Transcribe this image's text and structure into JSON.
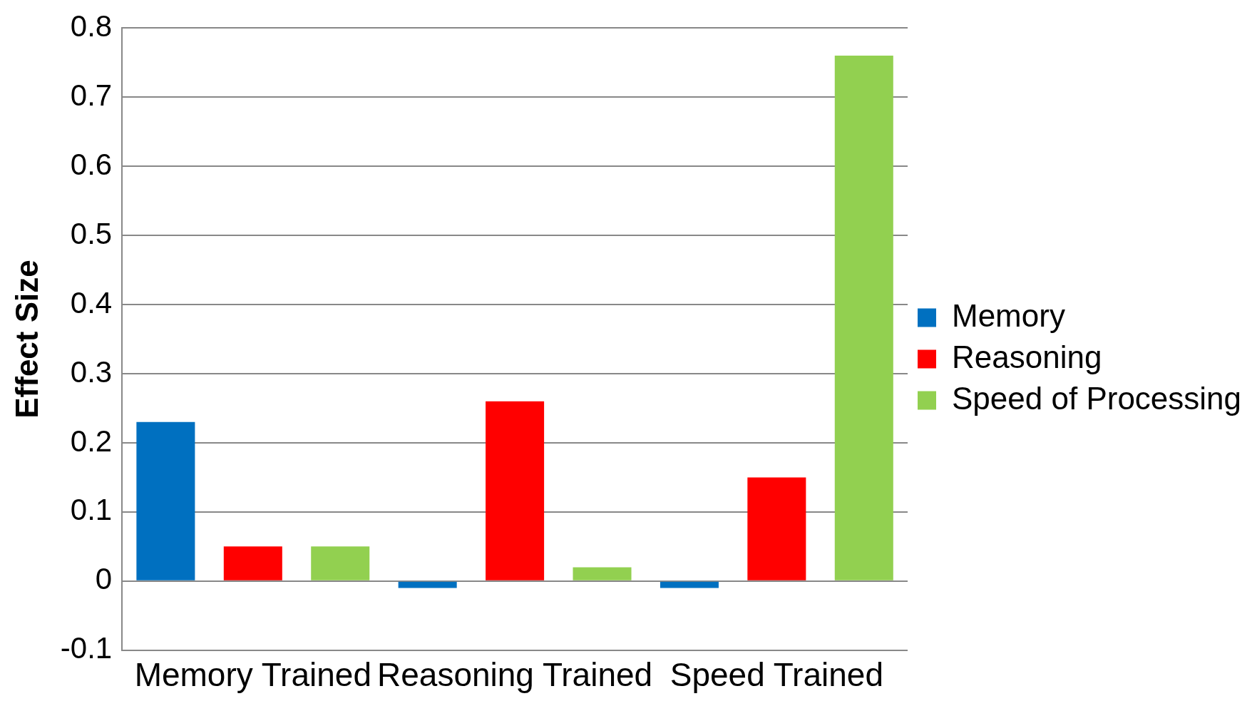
{
  "chart_data": {
    "type": "bar",
    "ylabel": "Effect Size",
    "categories": [
      "Memory Trained",
      "Reasoning Trained",
      "Speed Trained"
    ],
    "series": [
      {
        "name": "Memory",
        "color": "#0070c0",
        "values": [
          0.23,
          -0.01,
          -0.01
        ]
      },
      {
        "name": "Reasoning",
        "color": "#ff0000",
        "values": [
          0.05,
          0.26,
          0.15
        ]
      },
      {
        "name": "Speed of Processing",
        "color": "#92d050",
        "values": [
          0.05,
          0.02,
          0.76
        ]
      }
    ],
    "ylim": [
      -0.1,
      0.8
    ],
    "yticks": [
      -0.1,
      0,
      0.1,
      0.2,
      0.3,
      0.4,
      0.5,
      0.6,
      0.7,
      0.8
    ],
    "grid": "y",
    "legend": "right"
  }
}
